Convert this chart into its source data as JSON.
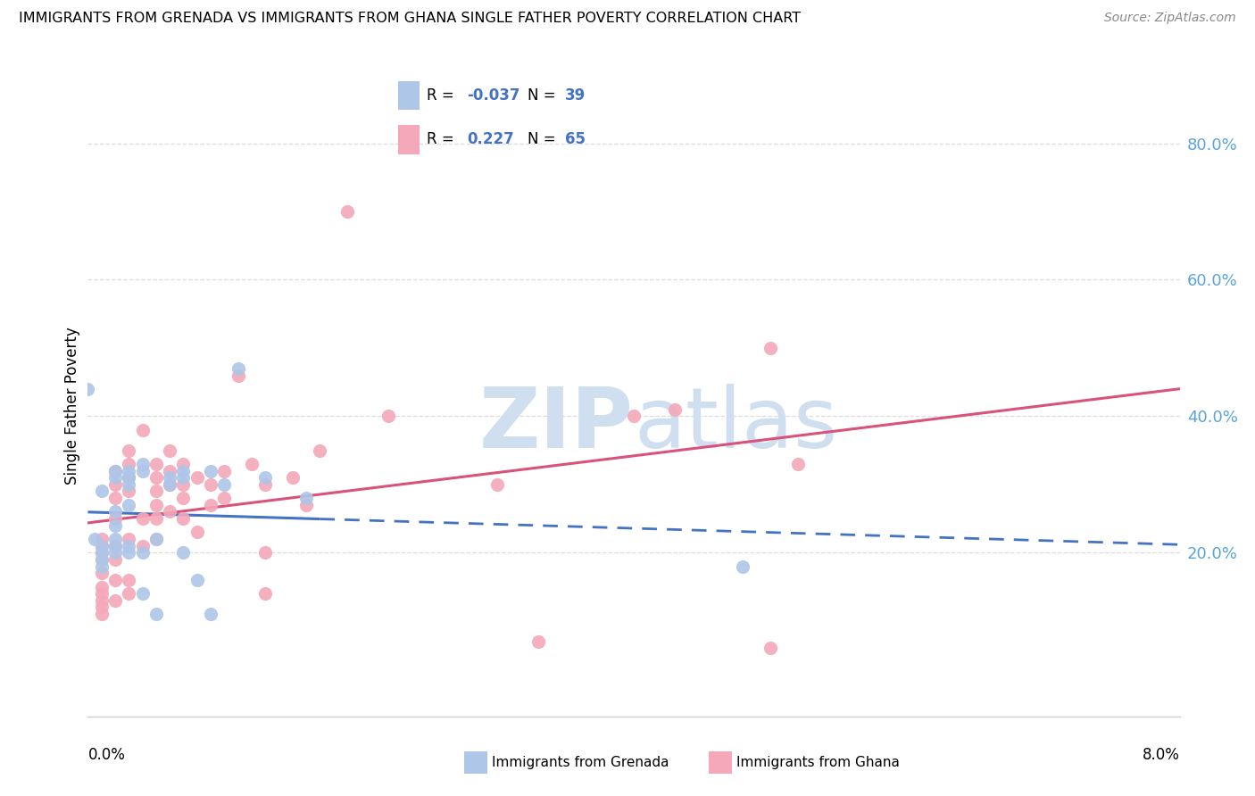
{
  "title": "IMMIGRANTS FROM GRENADA VS IMMIGRANTS FROM GHANA SINGLE FATHER POVERTY CORRELATION CHART",
  "source": "Source: ZipAtlas.com",
  "ylabel": "Single Father Poverty",
  "right_yticks": [
    0.2,
    0.4,
    0.6,
    0.8
  ],
  "right_ytick_labels": [
    "20.0%",
    "40.0%",
    "60.0%",
    "80.0%"
  ],
  "xlim": [
    0.0,
    0.08
  ],
  "ylim": [
    -0.04,
    0.87
  ],
  "grenada_R": -0.037,
  "grenada_N": 39,
  "ghana_R": 0.227,
  "ghana_N": 65,
  "grenada_color": "#aec6e8",
  "ghana_color": "#f4a8ba",
  "grenada_line_color": "#4472C4",
  "ghana_line_color": "#d9527a",
  "watermark_color": "#d0dff0",
  "background_color": "#ffffff",
  "grenada_x": [
    0.0,
    0.0005,
    0.001,
    0.001,
    0.001,
    0.001,
    0.001,
    0.002,
    0.002,
    0.002,
    0.002,
    0.002,
    0.002,
    0.002,
    0.003,
    0.003,
    0.003,
    0.003,
    0.003,
    0.003,
    0.004,
    0.004,
    0.004,
    0.004,
    0.005,
    0.005,
    0.006,
    0.006,
    0.007,
    0.007,
    0.007,
    0.008,
    0.009,
    0.009,
    0.01,
    0.011,
    0.013,
    0.016,
    0.048
  ],
  "grenada_y": [
    0.44,
    0.22,
    0.21,
    0.2,
    0.19,
    0.18,
    0.29,
    0.32,
    0.31,
    0.26,
    0.24,
    0.22,
    0.21,
    0.2,
    0.32,
    0.31,
    0.3,
    0.27,
    0.21,
    0.2,
    0.33,
    0.32,
    0.2,
    0.14,
    0.22,
    0.11,
    0.31,
    0.3,
    0.32,
    0.31,
    0.2,
    0.16,
    0.32,
    0.11,
    0.3,
    0.47,
    0.31,
    0.28,
    0.18
  ],
  "ghana_x": [
    0.001,
    0.001,
    0.001,
    0.001,
    0.001,
    0.001,
    0.001,
    0.001,
    0.001,
    0.001,
    0.002,
    0.002,
    0.002,
    0.002,
    0.002,
    0.002,
    0.002,
    0.002,
    0.003,
    0.003,
    0.003,
    0.003,
    0.003,
    0.003,
    0.003,
    0.004,
    0.004,
    0.004,
    0.005,
    0.005,
    0.005,
    0.005,
    0.005,
    0.005,
    0.006,
    0.006,
    0.006,
    0.006,
    0.007,
    0.007,
    0.007,
    0.007,
    0.008,
    0.008,
    0.009,
    0.009,
    0.01,
    0.01,
    0.011,
    0.012,
    0.013,
    0.013,
    0.013,
    0.015,
    0.016,
    0.017,
    0.019,
    0.022,
    0.03,
    0.033,
    0.04,
    0.043,
    0.05,
    0.052,
    0.05
  ],
  "ghana_y": [
    0.22,
    0.21,
    0.2,
    0.19,
    0.17,
    0.15,
    0.14,
    0.13,
    0.12,
    0.11,
    0.32,
    0.3,
    0.28,
    0.25,
    0.21,
    0.19,
    0.16,
    0.13,
    0.35,
    0.33,
    0.31,
    0.29,
    0.22,
    0.16,
    0.14,
    0.38,
    0.25,
    0.21,
    0.33,
    0.31,
    0.29,
    0.27,
    0.25,
    0.22,
    0.35,
    0.32,
    0.3,
    0.26,
    0.33,
    0.3,
    0.28,
    0.25,
    0.31,
    0.23,
    0.3,
    0.27,
    0.32,
    0.28,
    0.46,
    0.33,
    0.3,
    0.2,
    0.14,
    0.31,
    0.27,
    0.35,
    0.7,
    0.4,
    0.3,
    0.07,
    0.4,
    0.41,
    0.5,
    0.33,
    0.06
  ]
}
